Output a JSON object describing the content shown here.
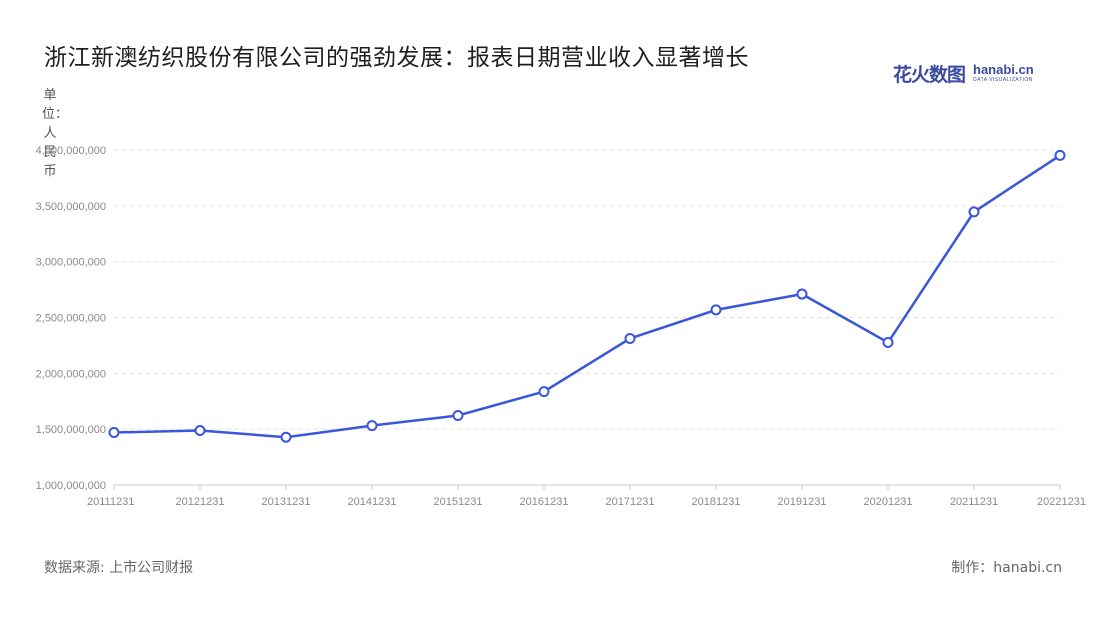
{
  "title": "浙江新澳纺织股份有限公司的强劲发展：报表日期营业收入显著增长",
  "logo": {
    "cn": "花火数图",
    "en": "hanabi.cn",
    "sub": "DATA VISUALIZATION"
  },
  "source": "数据来源: 上市公司财报",
  "credit": "制作：hanabi.cn",
  "colors": {
    "line": "#3a56d9",
    "point_fill": "#ffffff"
  },
  "chart_data": {
    "type": "line",
    "ylabel": "单位：人民币",
    "categories": [
      "20111231",
      "20121231",
      "20131231",
      "20141231",
      "20151231",
      "20161231",
      "20171231",
      "20181231",
      "20191231",
      "20201231",
      "20211231",
      "20221231"
    ],
    "series": [
      {
        "values": [
          1470000000,
          1488000000,
          1428000000,
          1532000000,
          1622000000,
          1836000000,
          2312000000,
          2568000000,
          2710000000,
          2276000000,
          3446000000,
          3952000000
        ]
      }
    ],
    "ylim": [
      1000000000,
      4000000000
    ],
    "yticks": [
      {
        "v": 1000000000,
        "label": "1,000,000,000"
      },
      {
        "v": 1500000000,
        "label": "1,500,000,000"
      },
      {
        "v": 2000000000,
        "label": "2,000,000,000"
      },
      {
        "v": 2500000000,
        "label": "2,500,000,000"
      },
      {
        "v": 3000000000,
        "label": "3,000,000,000"
      },
      {
        "v": 3500000000,
        "label": "3,500,000,000"
      },
      {
        "v": 4000000000,
        "label": "4,000,000,000"
      }
    ],
    "grid": true,
    "legend": "none"
  }
}
